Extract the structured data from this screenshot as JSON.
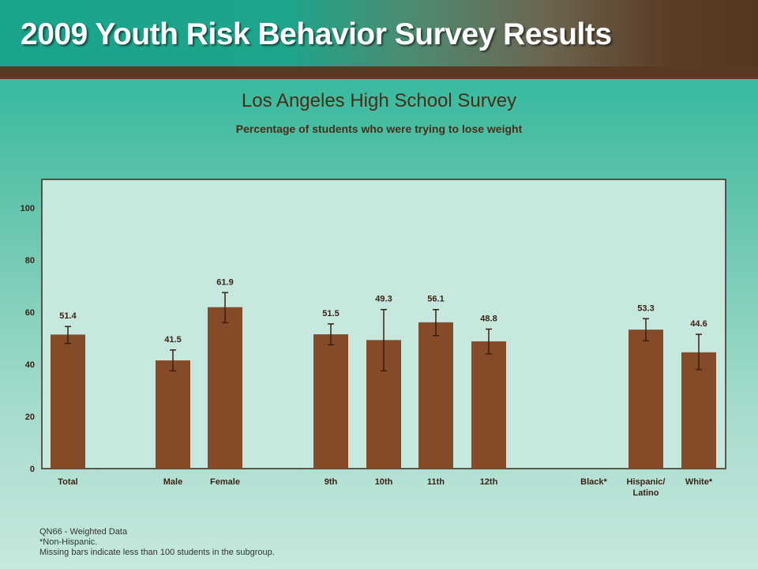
{
  "header": {
    "title": "2009 Youth Risk Behavior Survey Results"
  },
  "colors": {
    "bar": "#854a28",
    "error_bar": "#3a2010",
    "label": "#3a2314",
    "plot_frame": "#3a2a1a",
    "plot_bg": "#c6e8de"
  },
  "chart_data": {
    "type": "bar",
    "title": "Los Angeles High School Survey",
    "subtitle": "Percentage of students who were trying to lose weight",
    "xlabel": "",
    "ylabel": "",
    "ylim": [
      0,
      110
    ],
    "yticks": [
      0,
      20,
      40,
      60,
      80,
      100
    ],
    "grid": false,
    "error_bars": true,
    "categories": [
      "Total",
      "Male",
      "Female",
      "9th",
      "10th",
      "11th",
      "12th",
      "Black*",
      "Hispanic/\nLatino",
      "White*"
    ],
    "values": [
      51.4,
      41.5,
      61.9,
      51.5,
      49.3,
      56.1,
      48.8,
      null,
      53.3,
      44.6
    ],
    "value_labels": [
      "51.4",
      "41.5",
      "61.9",
      "51.5",
      "49.3",
      "56.1",
      "48.8",
      "",
      "53.3",
      "44.6"
    ],
    "ci_low": [
      48,
      37.5,
      56,
      47.5,
      37.5,
      51,
      44,
      null,
      49,
      38
    ],
    "ci_high": [
      54.5,
      45.5,
      67.5,
      55.5,
      61,
      61,
      53.5,
      null,
      57.5,
      51.5
    ]
  },
  "notes": {
    "line1": "QN66 - Weighted Data",
    "line2": "*Non-Hispanic.",
    "line3": "Missing bars indicate less than 100 students in the subgroup."
  }
}
